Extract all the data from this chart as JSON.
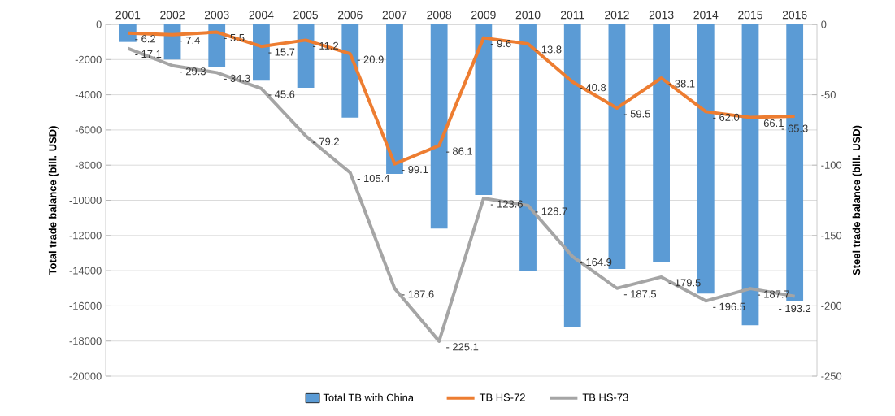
{
  "chart_data": {
    "type": "bar",
    "categories": [
      "2001",
      "2002",
      "2003",
      "2004",
      "2005",
      "2006",
      "2007",
      "2008",
      "2009",
      "2010",
      "2011",
      "2012",
      "2013",
      "2014",
      "2015",
      "2016"
    ],
    "ylabel": "Total trade balance (bill. USD)",
    "y2label": "Steel trade balance (bill. USD)",
    "ylim": [
      -20000,
      0
    ],
    "yticks": [
      -20000,
      -18000,
      -16000,
      -14000,
      -12000,
      -10000,
      -8000,
      -6000,
      -4000,
      -2000,
      0
    ],
    "y2lim": [
      -250,
      0
    ],
    "y2ticks": [
      -250,
      -200,
      -150,
      -100,
      -50,
      0
    ],
    "grid": "y",
    "legend": "bottom",
    "series": [
      {
        "name": "Total TB with China",
        "color": "#5b9bd5",
        "values": [
          -1000,
          -2000,
          -2400,
          -3200,
          -3600,
          -5300,
          -8500,
          -11600,
          -9700,
          -14000,
          -17200,
          -13900,
          -13500,
          -15300,
          -17100,
          -15700
        ]
      },
      {
        "name": "TB HS-72",
        "type": "line",
        "axis": "y2",
        "color": "#ed7d31",
        "values": [
          -6.2,
          -7.4,
          -5.5,
          -15.7,
          -11.2,
          -20.9,
          -99.1,
          -86.1,
          -9.6,
          -13.8,
          -40.8,
          -59.5,
          -38.1,
          -62.0,
          -66.1,
          -65.3
        ],
        "value_labels": [
          "- 6.2",
          "- 7.4",
          "- 5.5",
          "- 15.7",
          "- 11.2",
          "- 20.9",
          "- 99.1",
          "- 86.1",
          "- 9.6",
          "- 13.8",
          "- 40.8",
          "- 59.5",
          "- 38.1",
          "- 62.0",
          "- 66.1",
          "- 65.3"
        ]
      },
      {
        "name": "TB HS-73",
        "type": "line",
        "axis": "y2",
        "color": "#a5a5a5",
        "values": [
          -17.1,
          -29.3,
          -34.3,
          -45.6,
          -79.2,
          -105.4,
          -187.6,
          -225.1,
          -123.6,
          -128.7,
          -164.9,
          -187.5,
          -179.5,
          -196.5,
          -187.7,
          -193.2
        ],
        "value_labels": [
          "- 17.1",
          "- 29.3",
          "- 34.3",
          "- 45.6",
          "- 79.2",
          "- 105.4",
          "- 187.6",
          "- 225.1",
          "- 123.6",
          "- 128.7",
          "- 164.9",
          "- 187.5",
          "- 179.5",
          "- 196.5",
          "- 187.7",
          "- 193.2"
        ]
      }
    ]
  }
}
